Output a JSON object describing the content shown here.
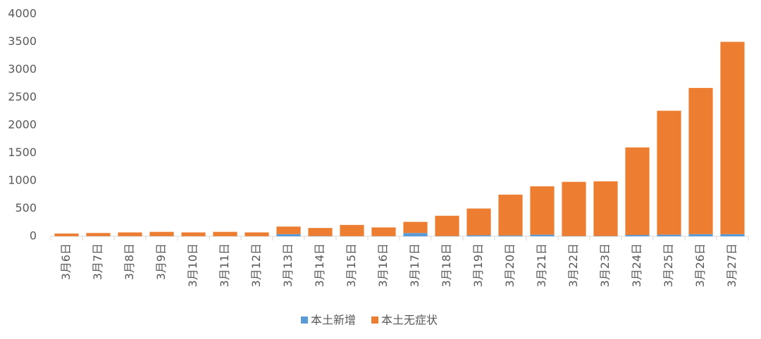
{
  "chart_data": {
    "type": "bar",
    "stacked": true,
    "categories": [
      "3月6日",
      "3月7日",
      "3月8日",
      "3月9日",
      "3月10日",
      "3月11日",
      "3月12日",
      "3月13日",
      "3月14日",
      "3月15日",
      "3月16日",
      "3月17日",
      "3月18日",
      "3月19日",
      "3月20日",
      "3月21日",
      "3月22日",
      "3月23日",
      "3月24日",
      "3月25日",
      "3月26日",
      "3月27日"
    ],
    "series": [
      {
        "name": "本土新增",
        "color": "#5b9bd5",
        "values": [
          2,
          3,
          3,
          3,
          2,
          2,
          2,
          40,
          5,
          3,
          3,
          60,
          5,
          20,
          15,
          30,
          5,
          5,
          25,
          30,
          40,
          40
        ]
      },
      {
        "name": "本土无症状",
        "color": "#ed7d31",
        "values": [
          48,
          57,
          67,
          77,
          68,
          78,
          68,
          135,
          145,
          202,
          157,
          200,
          365,
          480,
          735,
          870,
          975,
          985,
          1575,
          2230,
          2630,
          3460
        ]
      }
    ],
    "ylim": [
      0,
      4000
    ],
    "yticks": [
      0,
      500,
      1000,
      1500,
      2000,
      2500,
      3000,
      3500,
      4000
    ],
    "grid": false,
    "legend": "bottom"
  }
}
